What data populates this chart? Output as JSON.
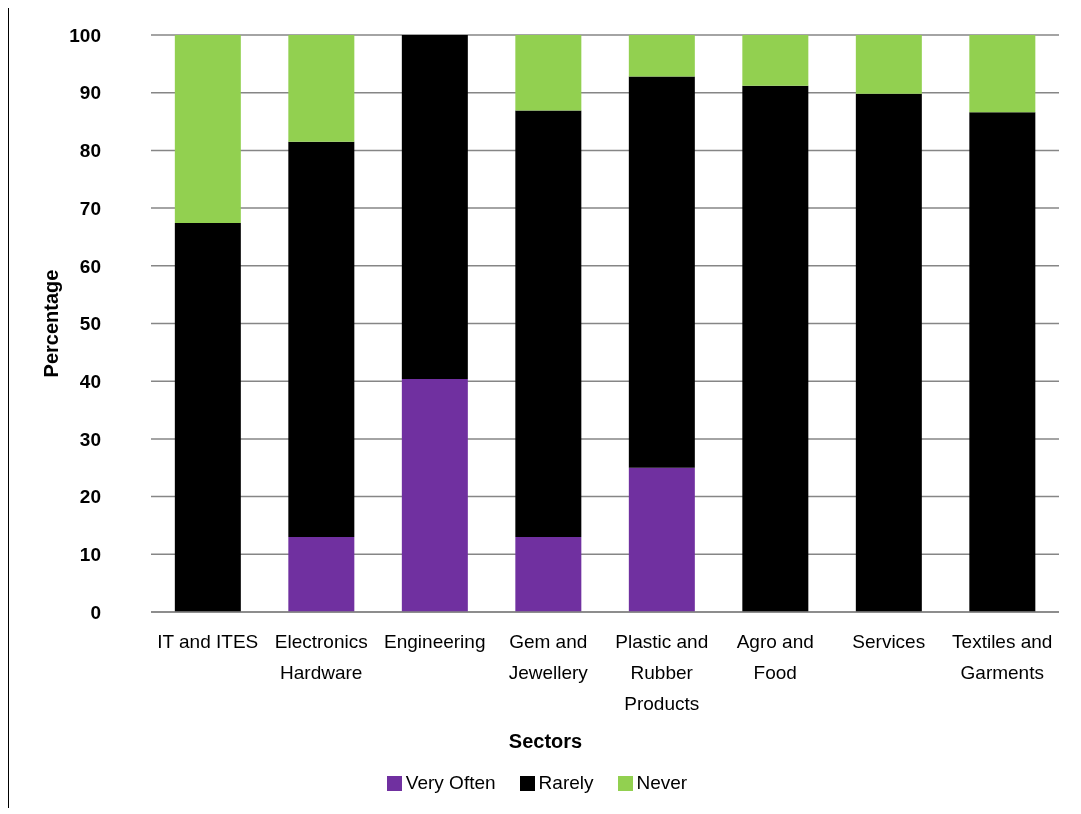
{
  "chart_data": {
    "type": "bar",
    "categories": [
      "IT and ITES",
      "Electronics Hardware",
      "Engineering",
      "Gem and Jewellery",
      "Plastic and Rubber Products",
      "Agro and Food",
      "Services",
      "Textiles and Garments"
    ],
    "series": [
      {
        "name": "Very Often",
        "color": "#7030a0",
        "values": [
          0,
          13,
          40.4,
          13,
          25,
          0,
          0,
          0
        ]
      },
      {
        "name": "Rarely",
        "color": "#000000",
        "values": [
          67.4,
          68.5,
          59.6,
          73.9,
          67.8,
          91.2,
          89.8,
          86.6
        ]
      },
      {
        "name": "Never",
        "color": "#92d050",
        "values": [
          32.6,
          18.5,
          0,
          13.1,
          7.2,
          8.8,
          10.2,
          13.4
        ]
      }
    ],
    "stacked": true,
    "xlabel": "Sectors",
    "ylabel": "Percentage",
    "ylim": [
      0,
      100
    ],
    "yticks": [
      0,
      10,
      20,
      30,
      40,
      50,
      60,
      70,
      80,
      90,
      100
    ],
    "grid": "y",
    "legend": "bottom"
  }
}
